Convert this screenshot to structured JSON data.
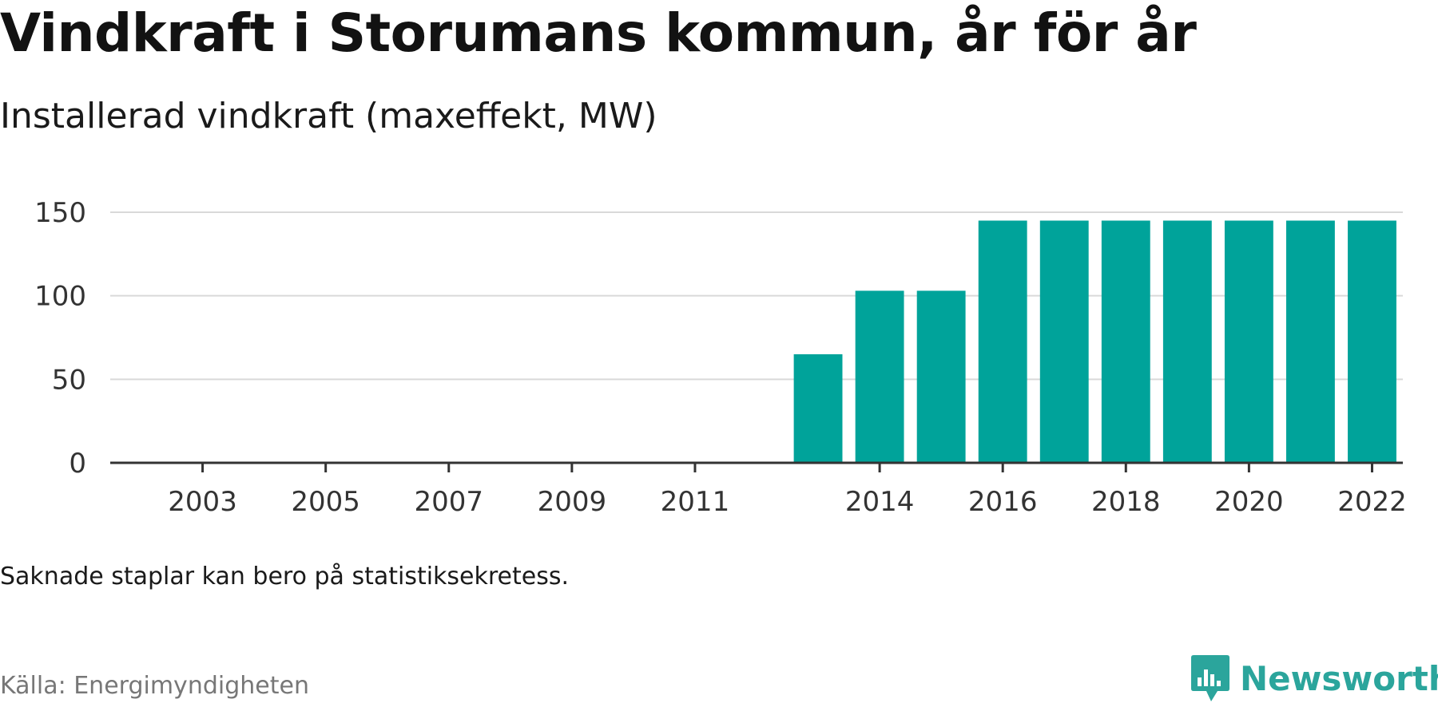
{
  "header": {
    "title": "Vindkraft i Storumans kommun, år för år",
    "subtitle": "Installerad vindkraft (maxeffekt, MW)"
  },
  "footer": {
    "note": "Saknade staplar kan bero på statistiksekretess.",
    "source": "Källa: Energimyndigheten",
    "brand": "Newsworthy"
  },
  "colors": {
    "bar": "#00a39a",
    "brand": "#2ba59c",
    "grid": "#d9d9d9",
    "axis": "#333333"
  },
  "icons": {
    "brand_logo": "bar-chart-speech-bubble-icon"
  },
  "chart_data": {
    "type": "bar",
    "title": "Vindkraft i Storumans kommun, år för år",
    "subtitle": "Installerad vindkraft (maxeffekt, MW)",
    "xlabel": "",
    "ylabel": "",
    "categories": [
      2002,
      2003,
      2004,
      2005,
      2006,
      2007,
      2008,
      2009,
      2010,
      2011,
      2012,
      2013,
      2014,
      2015,
      2016,
      2017,
      2018,
      2019,
      2020,
      2021,
      2022
    ],
    "values": [
      0,
      0,
      0,
      0,
      0,
      0,
      0,
      0,
      0,
      0,
      0,
      65,
      103,
      103,
      145,
      145,
      145,
      145,
      145,
      145,
      145
    ],
    "x_tick_labels": [
      "2003",
      "2005",
      "2007",
      "2009",
      "2011",
      "2014",
      "2016",
      "2018",
      "2020",
      "2022"
    ],
    "y_ticks": [
      0,
      50,
      100,
      150
    ],
    "ylim": [
      0,
      150
    ],
    "grid": true,
    "legend": "none"
  }
}
